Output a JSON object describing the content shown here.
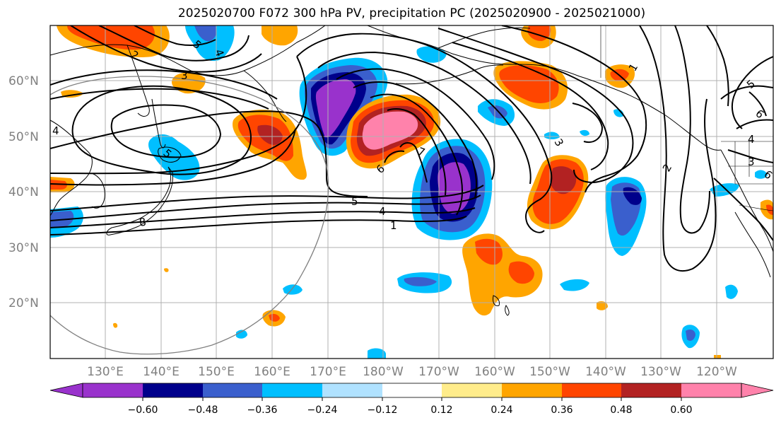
{
  "title": "2025020700 F072 300 hPa PV, precipitation PC (2025020900 - 2025021000)",
  "lat_labels": [
    "60°N",
    "50°N",
    "40°N",
    "30°N",
    "20°N"
  ],
  "lon_labels": [
    "130°E",
    "140°E",
    "150°E",
    "160°E",
    "170°E",
    "180°W",
    "170°W",
    "160°W",
    "150°W",
    "140°W",
    "130°W",
    "120°W"
  ],
  "colorbar": {
    "ticks": [
      "−0.60",
      "−0.48",
      "−0.36",
      "−0.24",
      "−0.12",
      "0.12",
      "0.24",
      "0.36",
      "0.48",
      "0.60"
    ],
    "colors": [
      "#9932CC",
      "#00008B",
      "#3A5FCD",
      "#00BFFF",
      "#B0E2FF",
      "#FFFFFF",
      "#FFEC8B",
      "#FFA500",
      "#FF4500",
      "#B22222",
      "#FF82AB"
    ]
  },
  "contour_labels": [
    "5",
    "4",
    "1",
    "5",
    "4",
    "6",
    "7",
    "6",
    "3",
    "2",
    "1",
    "5",
    "6",
    "4",
    "3",
    "2",
    "3",
    "4",
    "8",
    "5"
  ],
  "colors": {
    "grid": "#b0b0b0",
    "coast": "#000000",
    "contour": "#000000",
    "circle": "#808080"
  }
}
